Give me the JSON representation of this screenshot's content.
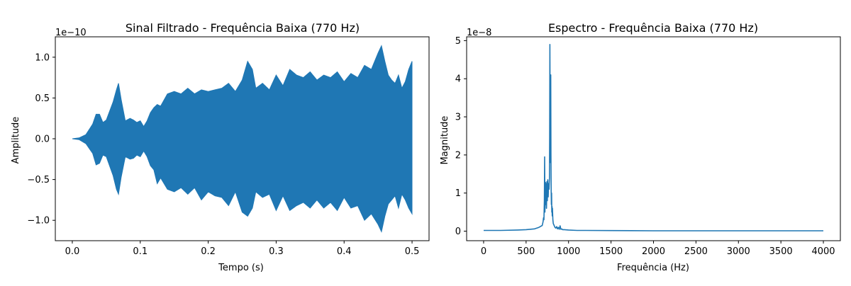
{
  "chart_data": [
    {
      "type": "line",
      "title": "Sinal Filtrado - Frequência Baixa (770 Hz)",
      "xlabel": "Tempo (s)",
      "ylabel": "Amplitude",
      "xlim": [
        -0.025,
        0.525
      ],
      "ylim": [
        -1.25,
        1.25
      ],
      "y_offset_label": "1e−10",
      "y_scale": 1e-10,
      "xticks": [
        0.0,
        0.1,
        0.2,
        0.3,
        0.4,
        0.5
      ],
      "xtick_labels": [
        "0.0",
        "0.1",
        "0.2",
        "0.3",
        "0.4",
        "0.5"
      ],
      "yticks": [
        -1.0,
        -0.5,
        0.0,
        0.5,
        1.0
      ],
      "ytick_labels": [
        "−1.0",
        "−0.5",
        "0.0",
        "0.5",
        "1.0"
      ],
      "line_color": "#1f77b4",
      "grid": false,
      "series": [
        {
          "x": [
            0.0,
            0.01,
            0.02,
            0.03,
            0.035,
            0.04,
            0.045,
            0.05,
            0.06,
            0.065,
            0.068,
            0.072,
            0.078,
            0.085,
            0.09,
            0.095,
            0.1,
            0.105,
            0.11,
            0.115,
            0.12,
            0.125,
            0.13,
            0.14,
            0.15,
            0.16,
            0.17,
            0.18,
            0.19,
            0.2,
            0.21,
            0.22,
            0.23,
            0.24,
            0.25,
            0.258,
            0.265,
            0.27,
            0.28,
            0.29,
            0.3,
            0.31,
            0.32,
            0.33,
            0.34,
            0.35,
            0.36,
            0.37,
            0.38,
            0.39,
            0.4,
            0.41,
            0.42,
            0.43,
            0.44,
            0.45,
            0.455,
            0.46,
            0.465,
            0.47,
            0.475,
            0.48,
            0.485,
            0.49,
            0.495,
            0.5
          ],
          "y_max": [
            0.0,
            0.01,
            0.05,
            0.18,
            0.3,
            0.3,
            0.2,
            0.23,
            0.45,
            0.6,
            0.68,
            0.48,
            0.22,
            0.25,
            0.23,
            0.2,
            0.22,
            0.15,
            0.22,
            0.32,
            0.38,
            0.42,
            0.4,
            0.55,
            0.58,
            0.55,
            0.62,
            0.55,
            0.6,
            0.58,
            0.6,
            0.62,
            0.68,
            0.58,
            0.72,
            0.95,
            0.85,
            0.62,
            0.68,
            0.6,
            0.78,
            0.65,
            0.85,
            0.78,
            0.75,
            0.82,
            0.72,
            0.78,
            0.75,
            0.82,
            0.7,
            0.8,
            0.75,
            0.9,
            0.85,
            1.05,
            1.14,
            0.95,
            0.78,
            0.72,
            0.68,
            0.78,
            0.62,
            0.7,
            0.85,
            0.95
          ],
          "y_min": [
            0.0,
            -0.01,
            -0.06,
            -0.18,
            -0.32,
            -0.3,
            -0.2,
            -0.22,
            -0.45,
            -0.62,
            -0.68,
            -0.47,
            -0.22,
            -0.25,
            -0.24,
            -0.2,
            -0.22,
            -0.15,
            -0.22,
            -0.33,
            -0.38,
            -0.55,
            -0.48,
            -0.62,
            -0.65,
            -0.6,
            -0.68,
            -0.6,
            -0.75,
            -0.65,
            -0.7,
            -0.72,
            -0.82,
            -0.65,
            -0.9,
            -0.95,
            -0.85,
            -0.65,
            -0.72,
            -0.68,
            -0.88,
            -0.7,
            -0.88,
            -0.82,
            -0.78,
            -0.85,
            -0.75,
            -0.85,
            -0.78,
            -0.88,
            -0.72,
            -0.85,
            -0.82,
            -1.0,
            -0.92,
            -1.05,
            -1.14,
            -0.95,
            -0.8,
            -0.75,
            -0.7,
            -0.85,
            -0.68,
            -0.75,
            -0.85,
            -0.92
          ]
        }
      ]
    },
    {
      "type": "line",
      "title": "Espectro - Frequência Baixa (770 Hz)",
      "xlabel": "Frequência (Hz)",
      "ylabel": "Magnitude",
      "xlim": [
        -200,
        4200
      ],
      "ylim": [
        -0.25,
        5.1
      ],
      "y_offset_label": "1e−8",
      "y_scale": 1e-08,
      "xticks": [
        0,
        500,
        1000,
        1500,
        2000,
        2500,
        3000,
        3500,
        4000
      ],
      "xtick_labels": [
        "0",
        "500",
        "1000",
        "1500",
        "2000",
        "2500",
        "3000",
        "3500",
        "4000"
      ],
      "yticks": [
        0,
        1,
        2,
        3,
        4,
        5
      ],
      "ytick_labels": [
        "0",
        "1",
        "2",
        "3",
        "4",
        "5"
      ],
      "line_color": "#1f77b4",
      "grid": false,
      "series": [
        {
          "x": [
            0,
            200,
            400,
            500,
            600,
            650,
            690,
            700,
            705,
            710,
            715,
            718,
            720,
            722,
            725,
            728,
            730,
            735,
            740,
            745,
            750,
            755,
            760,
            765,
            770,
            775,
            778,
            780,
            782,
            785,
            788,
            790,
            793,
            795,
            798,
            800,
            803,
            805,
            808,
            810,
            815,
            820,
            830,
            840,
            850,
            860,
            870,
            880,
            890,
            900,
            910,
            920,
            930,
            950,
            1000,
            1100,
            1200,
            1500,
            2000,
            2500,
            3000,
            3500,
            4000
          ],
          "y": [
            0.02,
            0.02,
            0.03,
            0.04,
            0.06,
            0.1,
            0.15,
            0.25,
            0.35,
            0.3,
            0.8,
            1.95,
            1.2,
            0.5,
            0.9,
            1.28,
            0.7,
            1.25,
            0.6,
            1.3,
            0.8,
            1.35,
            0.9,
            1.25,
            1.1,
            1.4,
            2.5,
            4.9,
            3.8,
            1.8,
            3.2,
            4.1,
            2.0,
            1.1,
            0.7,
            1.0,
            0.5,
            0.65,
            0.4,
            0.6,
            0.3,
            0.2,
            0.15,
            0.1,
            0.08,
            0.12,
            0.06,
            0.1,
            0.05,
            0.14,
            0.05,
            0.06,
            0.04,
            0.04,
            0.03,
            0.02,
            0.02,
            0.015,
            0.01,
            0.01,
            0.01,
            0.01,
            0.01
          ]
        }
      ]
    }
  ]
}
